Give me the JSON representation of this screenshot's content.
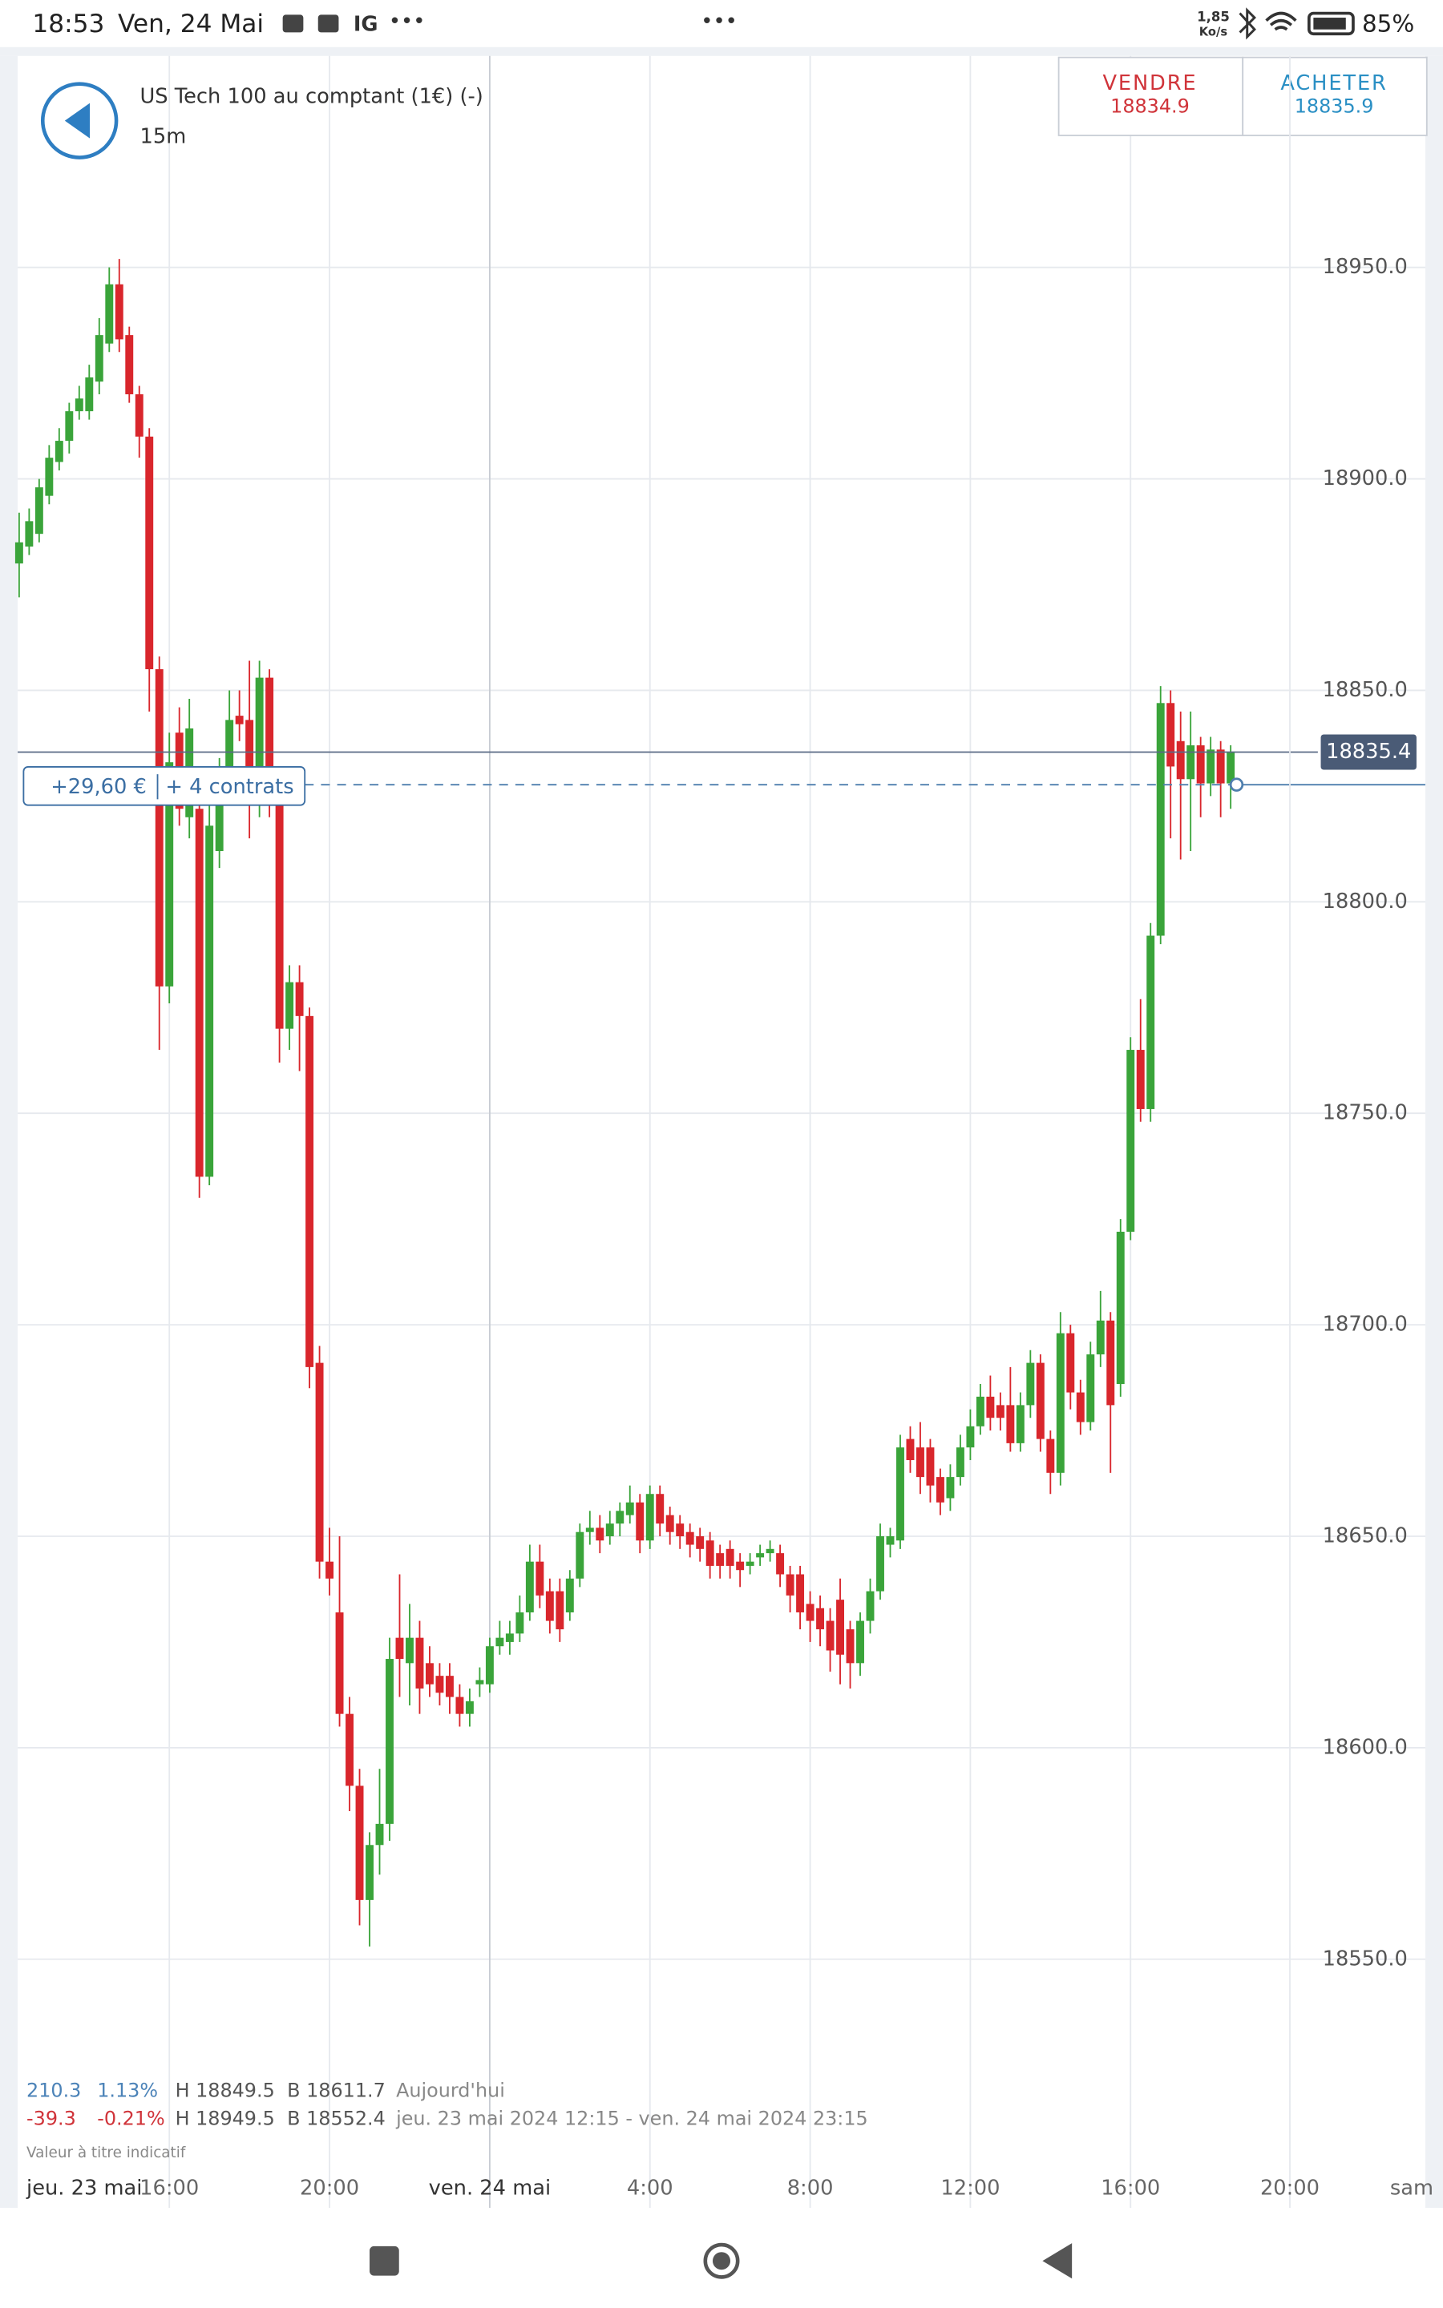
{
  "status_bar": {
    "time": "18:53",
    "date": "Ven, 24 Mai",
    "app": "IG",
    "speed": "1,85",
    "speed_unit": "Ko/s",
    "battery": "85%"
  },
  "header": {
    "instrument": "US Tech 100 au comptant (1€) (-)",
    "interval": "15m"
  },
  "trade_buttons": {
    "sell_label": "VENDRE",
    "sell_price": "18834.9",
    "buy_label": "ACHETER",
    "buy_price": "18835.9"
  },
  "position": {
    "pnl": "+29,60 €",
    "contracts": "+ 4 contrats"
  },
  "stats": {
    "today_change": "210.3",
    "today_pct": "1.13%",
    "today_high": "H 18849.5",
    "today_low": "B 18611.7",
    "today_label": "Aujourd'hui",
    "range_change": "-39.3",
    "range_pct": "-0.21%",
    "range_high": "H 18949.5",
    "range_low": "B 18552.4",
    "range_label": "jeu. 23 mai 2024 12:15 - ven. 24 mai 2024 23:15",
    "disclaimer": "Valeur à titre indicatif"
  },
  "axis_extra": {
    "start_date": "jeu. 23 mai",
    "end_time": "20:00",
    "next_day": "sam"
  },
  "chart_data": {
    "type": "candlestick",
    "up_color": "#3aa43a",
    "down_color": "#d9262c",
    "grid": true,
    "ylim": [
      18526,
      19000
    ],
    "yticks": [
      {
        "value": 18550,
        "label": "18550.0"
      },
      {
        "value": 18600,
        "label": "18600.0"
      },
      {
        "value": 18650,
        "label": "18650.0"
      },
      {
        "value": 18700,
        "label": "18700.0"
      },
      {
        "value": 18750,
        "label": "18750.0"
      },
      {
        "value": 18800,
        "label": "18800.0"
      },
      {
        "value": 18850,
        "label": "18850.0"
      },
      {
        "value": 18900,
        "label": "18900.0"
      },
      {
        "value": 18950,
        "label": "18950.0"
      }
    ],
    "current_price": 18835.4,
    "position_level": 18827.7,
    "categories": [
      null,
      null,
      null,
      null,
      null,
      null,
      null,
      null,
      null,
      null,
      null,
      null,
      null,
      null,
      null,
      "16:00",
      null,
      null,
      null,
      null,
      null,
      null,
      null,
      null,
      null,
      null,
      null,
      null,
      null,
      null,
      null,
      "20:00",
      null,
      null,
      null,
      null,
      null,
      null,
      null,
      null,
      null,
      null,
      null,
      null,
      null,
      null,
      null,
      "ven. 24 mai",
      null,
      null,
      null,
      null,
      null,
      null,
      null,
      null,
      null,
      null,
      null,
      null,
      null,
      null,
      null,
      "4:00",
      null,
      null,
      null,
      null,
      null,
      null,
      null,
      null,
      null,
      null,
      null,
      null,
      null,
      null,
      null,
      "8:00",
      null,
      null,
      null,
      null,
      null,
      null,
      null,
      null,
      null,
      null,
      null,
      null,
      null,
      null,
      null,
      "12:00",
      null,
      null,
      null,
      null,
      null,
      null,
      null,
      null,
      null,
      null,
      null,
      null,
      null,
      null,
      null,
      "16:00",
      null,
      null,
      null,
      null,
      null,
      null,
      null,
      null,
      null,
      null
    ],
    "open": [
      18880,
      18884,
      18887,
      18896,
      18904,
      18909,
      18916,
      18916,
      18923,
      18932,
      18946,
      18934,
      18920,
      18910,
      18855,
      18780,
      18840,
      18820,
      18822,
      18735,
      18812,
      18830,
      18844,
      18843,
      18823,
      18853,
      18830,
      18770,
      18781,
      18773,
      18691,
      18644,
      18632,
      18608,
      18591,
      18564,
      18577,
      18582,
      18626,
      18620,
      18626,
      18620,
      18617,
      18617,
      18612,
      18608,
      18615,
      18615,
      18624,
      18625,
      18627,
      18632,
      18644,
      18637,
      18637,
      18632,
      18640,
      18651,
      18652,
      18650,
      18653,
      18655,
      18658,
      18649,
      18660,
      18655,
      18653,
      18651,
      18650,
      18649,
      18646,
      18647,
      18644,
      18643,
      18645,
      18646,
      18646,
      18641,
      18641,
      18634,
      18633,
      18630,
      18635,
      18628,
      18620,
      18630,
      18637,
      18648,
      18649,
      18673,
      18671,
      18671,
      18664,
      18659,
      18664,
      18671,
      18676,
      18683,
      18681,
      18681,
      18672,
      18681,
      18691,
      18673,
      18665,
      18698,
      18684,
      18677,
      18693,
      18701,
      18686,
      18722,
      18765,
      18751,
      18792,
      18847,
      18838,
      18829,
      18837,
      18828,
      18836,
      18828
    ],
    "high": [
      18892,
      18893,
      18900,
      18908,
      18912,
      18918,
      18922,
      18927,
      18938,
      18950,
      18952,
      18936,
      18922,
      18912,
      18858,
      18840,
      18846,
      18848,
      18825,
      18825,
      18834,
      18850,
      18850,
      18857,
      18857,
      18855,
      18832,
      18785,
      18785,
      18775,
      18695,
      18652,
      18650,
      18612,
      18595,
      18580,
      18595,
      18626,
      18641,
      18634,
      18630,
      18624,
      18620,
      18620,
      18615,
      18614,
      18619,
      18626,
      18630,
      18630,
      18636,
      18648,
      18648,
      18640,
      18640,
      18642,
      18653,
      18656,
      18655,
      18656,
      18658,
      18662,
      18660,
      18662,
      18662,
      18657,
      18655,
      18653,
      18652,
      18651,
      18648,
      18649,
      18646,
      18646,
      18648,
      18649,
      18648,
      18643,
      18643,
      18637,
      18636,
      18633,
      18640,
      18630,
      18632,
      18640,
      18653,
      18652,
      18674,
      18676,
      18677,
      18673,
      18666,
      18667,
      18674,
      18680,
      18686,
      18688,
      18684,
      18690,
      18684,
      18694,
      18693,
      18675,
      18703,
      18700,
      18687,
      18696,
      18708,
      18703,
      18725,
      18768,
      18777,
      18795,
      18851,
      18850,
      18845,
      18845,
      18839,
      18839,
      18838,
      18837
    ],
    "low": [
      18872,
      18882,
      18885,
      18894,
      18902,
      18906,
      18914,
      18914,
      18920,
      18930,
      18930,
      18918,
      18905,
      18845,
      18765,
      18776,
      18818,
      18815,
      18730,
      18733,
      18808,
      18826,
      18838,
      18815,
      18820,
      18820,
      18762,
      18765,
      18760,
      18685,
      18640,
      18636,
      18605,
      18585,
      18558,
      18553,
      18570,
      18578,
      18612,
      18610,
      18608,
      18612,
      18610,
      18608,
      18605,
      18605,
      18612,
      18613,
      18622,
      18622,
      18625,
      18630,
      18633,
      18627,
      18625,
      18630,
      18638,
      18648,
      18646,
      18648,
      18650,
      18653,
      18646,
      18647,
      18650,
      18648,
      18647,
      18645,
      18644,
      18640,
      18640,
      18640,
      18638,
      18641,
      18643,
      18644,
      18638,
      18632,
      18628,
      18625,
      18624,
      18618,
      18615,
      18614,
      18617,
      18627,
      18635,
      18645,
      18647,
      18665,
      18660,
      18658,
      18655,
      18656,
      18662,
      18668,
      18674,
      18675,
      18675,
      18670,
      18670,
      18678,
      18670,
      18660,
      18662,
      18680,
      18674,
      18675,
      18690,
      18665,
      18683,
      18720,
      18748,
      18748,
      18790,
      18815,
      18810,
      18812,
      18820,
      18825,
      18820,
      18822
    ],
    "close": [
      18885,
      18890,
      18898,
      18905,
      18909,
      18916,
      18919,
      18924,
      18934,
      18946,
      18933,
      18920,
      18910,
      18855,
      18780,
      18833,
      18822,
      18841,
      18735,
      18818,
      18830,
      18843,
      18842,
      18823,
      18853,
      18830,
      18770,
      18781,
      18773,
      18690,
      18644,
      18640,
      18608,
      18591,
      18564,
      18577,
      18582,
      18621,
      18621,
      18626,
      18614,
      18615,
      18613,
      18612,
      18608,
      18611,
      18616,
      18624,
      18626,
      18627,
      18632,
      18644,
      18636,
      18630,
      18628,
      18640,
      18651,
      18652,
      18649,
      18653,
      18656,
      18658,
      18649,
      18660,
      18653,
      18651,
      18650,
      18648,
      18647,
      18643,
      18643,
      18643,
      18642,
      18644,
      18646,
      18647,
      18641,
      18636,
      18632,
      18630,
      18628,
      18623,
      18622,
      18620,
      18630,
      18637,
      18650,
      18650,
      18671,
      18668,
      18664,
      18662,
      18658,
      18664,
      18671,
      18676,
      18683,
      18678,
      18678,
      18672,
      18681,
      18691,
      18673,
      18665,
      18698,
      18684,
      18677,
      18693,
      18701,
      18681,
      18722,
      18765,
      18751,
      18792,
      18847,
      18832,
      18829,
      18837,
      18828,
      18836,
      18828,
      18835.4
    ]
  }
}
